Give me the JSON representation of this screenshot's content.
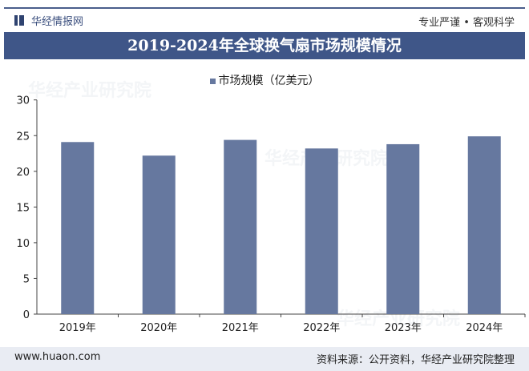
{
  "header": {
    "brand": "华经情报网",
    "slogan": "专业严谨 • 客观科学",
    "title": "2019-2024年全球换气扇市场规模情况"
  },
  "footer": {
    "url": "www.huaon.com",
    "source": "资料来源：公开资料，华经产业研究院整理"
  },
  "watermark": "华经产业研究院",
  "colors": {
    "bar": "#66789f",
    "banner": "#3f5688"
  },
  "chart_data": {
    "type": "bar",
    "title": "",
    "categories": [
      "2019年",
      "2020年",
      "2021年",
      "2022年",
      "2023年",
      "2024年"
    ],
    "series": [
      {
        "name": "市场规模（亿美元）",
        "values": [
          24.1,
          22.2,
          24.4,
          23.2,
          23.8,
          24.9
        ]
      }
    ],
    "yticks": [
      0,
      5,
      10,
      15,
      20,
      25,
      30
    ],
    "ylim": [
      0,
      30
    ],
    "grid": false,
    "legend": "top-center"
  }
}
